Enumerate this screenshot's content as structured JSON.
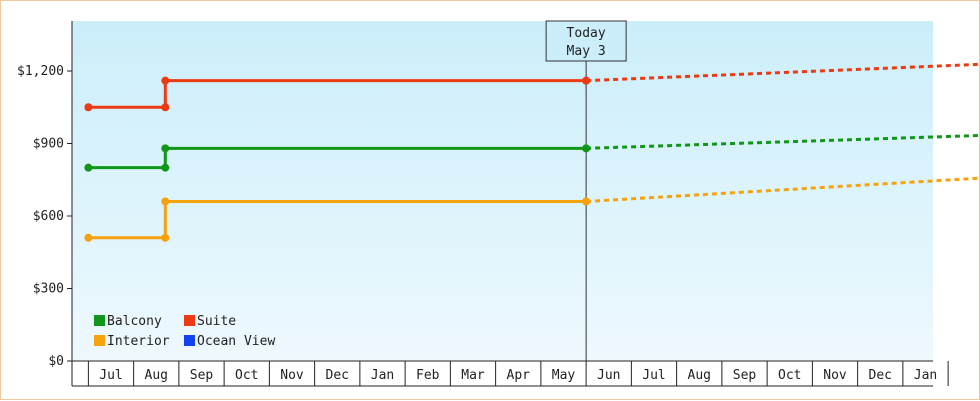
{
  "chart_data": {
    "type": "line",
    "x_labels": [
      "Jul",
      "Aug",
      "Sep",
      "Oct",
      "Nov",
      "Dec",
      "Jan",
      "Feb",
      "Mar",
      "Apr",
      "May",
      "Jun",
      "Jul",
      "Aug",
      "Sep",
      "Oct",
      "Nov",
      "Dec",
      "Jan"
    ],
    "y_ticks": [
      {
        "value": 0,
        "label": "$0"
      },
      {
        "value": 300,
        "label": "$300"
      },
      {
        "value": 600,
        "label": "$600"
      },
      {
        "value": 900,
        "label": "$900"
      },
      {
        "value": 1200,
        "label": "$1,200"
      }
    ],
    "ylim": [
      0,
      1200
    ],
    "today": {
      "label": "Today",
      "date": "May 3",
      "x": 10.5
    },
    "series": [
      {
        "name": "Balcony",
        "color": "#109618",
        "actual": [
          [
            -0.5,
            800
          ],
          [
            1.2,
            800
          ],
          [
            1.2,
            880
          ],
          [
            10.5,
            880
          ]
        ],
        "projected": [
          [
            10.5,
            880
          ],
          [
            19.5,
            935
          ]
        ]
      },
      {
        "name": "Suite",
        "color": "#ee3a12",
        "actual": [
          [
            -0.5,
            1050
          ],
          [
            1.2,
            1050
          ],
          [
            1.2,
            1160
          ],
          [
            10.5,
            1160
          ]
        ],
        "projected": [
          [
            10.5,
            1160
          ],
          [
            19.5,
            1230
          ]
        ]
      },
      {
        "name": "Interior",
        "color": "#f5a20c",
        "actual": [
          [
            -0.5,
            510
          ],
          [
            1.2,
            510
          ],
          [
            1.2,
            660
          ],
          [
            10.5,
            660
          ]
        ],
        "projected": [
          [
            10.5,
            660
          ],
          [
            19.5,
            760
          ]
        ]
      },
      {
        "name": "Ocean View",
        "color": "#1144ee",
        "actual": [],
        "projected": []
      }
    ]
  }
}
